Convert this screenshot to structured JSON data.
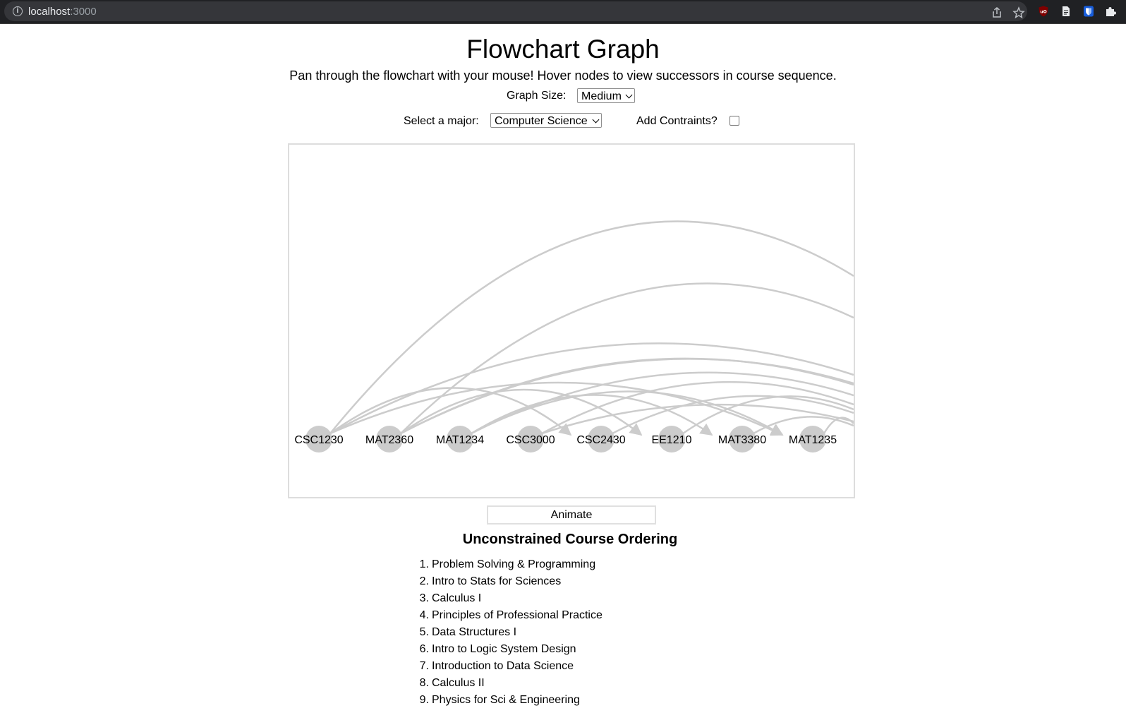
{
  "browser": {
    "url_host": "localhost",
    "url_port": ":3000"
  },
  "page": {
    "title": "Flowchart Graph",
    "subtitle": "Pan through the flowchart with your mouse! Hover nodes to view successors in course sequence.",
    "graph_size_label": "Graph Size:",
    "graph_size_value": "Medium",
    "major_label": "Select a major:",
    "major_value": "Computer Science",
    "constraints_label": "Add Contraints?",
    "constraints_checked": false,
    "animate_label": "Animate",
    "list_title": "Unconstrained Course Ordering"
  },
  "graph": {
    "nodes": [
      "CSC1230",
      "MAT2360",
      "MAT1234",
      "CSC3000",
      "CSC2430",
      "EE1210",
      "MAT3380",
      "MAT1235"
    ],
    "node_color": "#cccccc",
    "edge_color": "#cccccc"
  },
  "courses": [
    {
      "num": "1.",
      "name": "Problem Solving & Programming"
    },
    {
      "num": "2.",
      "name": "Intro to Stats for Sciences"
    },
    {
      "num": "3.",
      "name": "Calculus I"
    },
    {
      "num": "4.",
      "name": "Principles of Professional Practice"
    },
    {
      "num": "5.",
      "name": "Data Structures I"
    },
    {
      "num": "6.",
      "name": "Intro to Logic System Design"
    },
    {
      "num": "7.",
      "name": "Introduction to Data Science"
    },
    {
      "num": "8.",
      "name": "Calculus II"
    },
    {
      "num": "9.",
      "name": "Physics for Sci & Engineering"
    }
  ]
}
